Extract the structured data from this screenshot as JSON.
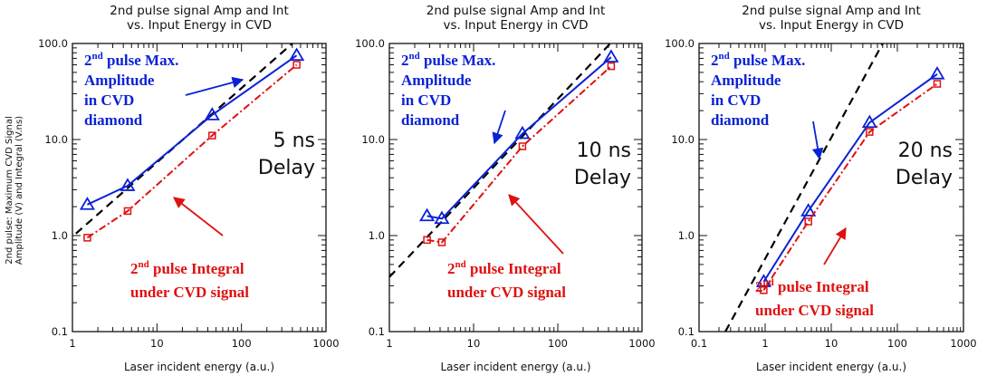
{
  "ylabel": "2nd pulse: Maximum CVD Signal Amplitude (V) and Integral (V.ns)",
  "ylabel_lines": [
    "2nd pulse: Maximum CVD Signal",
    "Amplitude (V) and Integral (V.ns)"
  ],
  "colors": {
    "amplitude": "#0a22d6",
    "integral": "#e01010",
    "fit": "#000000",
    "axes": "#111111"
  },
  "chart_data": [
    {
      "type": "line",
      "title": "2nd pulse signal Amp and Int vs. Input Energy in CVD",
      "title_lines": [
        "2nd pulse signal Amp and Int",
        "vs. Input Energy in CVD"
      ],
      "xlabel": "Laser incident energy (a.u.)",
      "xscale": "log",
      "yscale": "log",
      "xlim": [
        1,
        1000
      ],
      "ylim": [
        0.1,
        100
      ],
      "xticks": [
        "1",
        "10",
        "100",
        "1000"
      ],
      "yticks": [
        "0.1",
        "1.0",
        "10.0",
        "100.0"
      ],
      "delay_label": [
        "5 ns",
        "Delay"
      ],
      "series": [
        {
          "label_lines": [
            "2nd pulse Max.",
            "Amplitude",
            "in CVD",
            "diamond"
          ],
          "marker": "triangle",
          "color": "#0a22d6",
          "x": [
            1.5,
            4.5,
            45,
            450
          ],
          "y": [
            2.1,
            3.3,
            18,
            75
          ]
        },
        {
          "label_lines": [
            "2nd pulse Integral",
            "under CVD signal"
          ],
          "marker": "square",
          "color": "#e01010",
          "x": [
            1.5,
            4.5,
            45,
            450
          ],
          "y": [
            0.95,
            1.8,
            11,
            60
          ]
        }
      ],
      "fit_line": {
        "style": "dashed",
        "x": [
          1.1,
          400
        ],
        "y": [
          1.05,
          100
        ]
      }
    },
    {
      "type": "line",
      "title": "2nd pulse signal Amp and Int vs. Input Energy in CVD",
      "title_lines": [
        "2nd pulse signal Amp and Int",
        "vs. Input Energy in CVD"
      ],
      "xlabel": "Laser incident energy (a.u.)",
      "xscale": "log",
      "yscale": "log",
      "xlim": [
        1,
        1000
      ],
      "ylim": [
        0.1,
        100
      ],
      "xticks": [
        "1",
        "10",
        "100",
        "1000"
      ],
      "yticks": [
        "0.1",
        "1.0",
        "10.0",
        "100.0"
      ],
      "delay_label": [
        "10 ns",
        "Delay"
      ],
      "series": [
        {
          "label_lines": [
            "2nd pulse Max.",
            "Amplitude",
            "in CVD",
            "diamond"
          ],
          "marker": "triangle",
          "color": "#0a22d6",
          "x": [
            2.8,
            4.2,
            38,
            430
          ],
          "y": [
            1.6,
            1.5,
            11.5,
            72
          ]
        },
        {
          "label_lines": [
            "2nd pulse Integral",
            "under CVD signal"
          ],
          "marker": "square",
          "color": "#e01010",
          "x": [
            2.8,
            4.2,
            38,
            430
          ],
          "y": [
            0.9,
            0.85,
            8.5,
            58
          ]
        }
      ],
      "fit_line": {
        "style": "dashed",
        "x": [
          1,
          420
        ],
        "y": [
          0.37,
          100
        ]
      }
    },
    {
      "type": "line",
      "title": "2nd pulse signal Amp and Int vs. Input Energy in CVD",
      "title_lines": [
        "2nd pulse signal Amp and Int",
        "vs. Input Energy in CVD"
      ],
      "xlabel": "Laser incident energy (a.u.)",
      "xscale": "log",
      "yscale": "log",
      "xlim": [
        0.1,
        1000
      ],
      "ylim": [
        0.1,
        100
      ],
      "xticks": [
        "0.1",
        "1",
        "10",
        "100",
        "1000"
      ],
      "yticks": [
        "0.1",
        "1.0",
        "10.0",
        "100.0"
      ],
      "delay_label": [
        "20 ns",
        "Delay"
      ],
      "series": [
        {
          "label_lines": [
            "2nd pulse Max.",
            "Amplitude",
            "in CVD",
            "diamond"
          ],
          "marker": "triangle",
          "color": "#0a22d6",
          "x": [
            0.95,
            4.5,
            38,
            400
          ],
          "y": [
            0.33,
            1.8,
            15,
            48
          ]
        },
        {
          "label_lines": [
            "2nd pulse Integral",
            "under CVD signal"
          ],
          "marker": "square",
          "color": "#e01010",
          "x": [
            0.95,
            4.5,
            38,
            400
          ],
          "y": [
            0.27,
            1.4,
            12,
            38
          ]
        }
      ],
      "fit_line": {
        "style": "dashed",
        "x": [
          0.25,
          60
        ],
        "y": [
          0.1,
          100
        ]
      }
    }
  ]
}
